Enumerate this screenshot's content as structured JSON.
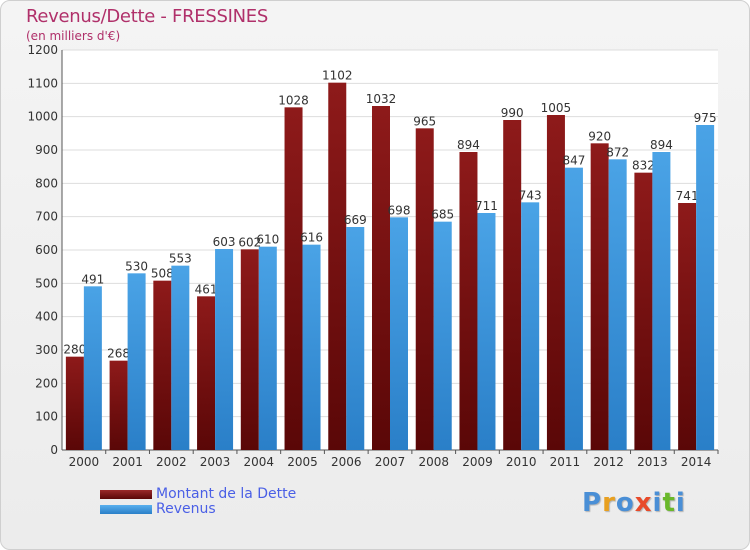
{
  "title": "Revenus/Dette - FRESSINES",
  "subtitle": "(en milliers d'€)",
  "colors": {
    "dette": "#8e1a1a",
    "dette_dark": "#5a0707",
    "revenus": "#4aa3e6",
    "revenus_dark": "#2a7fc8",
    "title": "#b0306a",
    "legend_text": "#4a5fe6"
  },
  "legend": [
    {
      "label": "Montant de la Dette",
      "color": "#8e1a1a"
    },
    {
      "label": "Revenus",
      "color": "#4aa3e6"
    }
  ],
  "logo": {
    "letters": [
      "P",
      "r",
      "o",
      "x",
      "i",
      "t",
      "i"
    ]
  },
  "chart_data": {
    "type": "bar",
    "categories": [
      "2000",
      "2001",
      "2002",
      "2003",
      "2004",
      "2005",
      "2006",
      "2007",
      "2008",
      "2009",
      "2010",
      "2011",
      "2012",
      "2013",
      "2014"
    ],
    "series": [
      {
        "name": "Montant de la Dette",
        "values": [
          280,
          268,
          508,
          461,
          602,
          1028,
          1102,
          1032,
          965,
          894,
          990,
          1005,
          920,
          832,
          741
        ]
      },
      {
        "name": "Revenus",
        "values": [
          491,
          530,
          553,
          603,
          610,
          616,
          669,
          698,
          685,
          711,
          743,
          847,
          872,
          894,
          975
        ]
      }
    ],
    "ylim": [
      0,
      1200
    ],
    "yticks": [
      0,
      100,
      200,
      300,
      400,
      500,
      600,
      700,
      800,
      900,
      1000,
      1100,
      1200
    ],
    "grid": true
  }
}
